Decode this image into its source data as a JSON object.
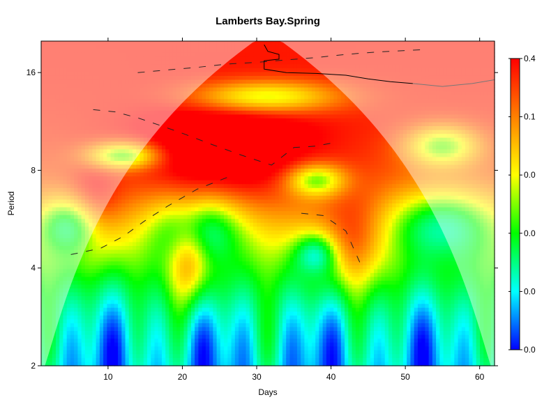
{
  "chart_data": {
    "type": "heatmap",
    "title": "Lamberts Bay.Spring",
    "xlabel": "Days",
    "ylabel": "Period",
    "x_range": [
      1,
      62
    ],
    "y_range": [
      2,
      20
    ],
    "y_scale": "log2",
    "x_ticks": [
      {
        "value": 10,
        "label": "10"
      },
      {
        "value": 20,
        "label": "20"
      },
      {
        "value": 30,
        "label": "30"
      },
      {
        "value": 40,
        "label": "40"
      },
      {
        "value": 50,
        "label": "50"
      },
      {
        "value": 60,
        "label": "60"
      }
    ],
    "y_ticks": [
      {
        "value": 2,
        "label": "2"
      },
      {
        "value": 4,
        "label": "4"
      },
      {
        "value": 8,
        "label": "8"
      },
      {
        "value": 16,
        "label": "16"
      }
    ],
    "colorbar": {
      "colors": [
        "#ff0000",
        "#ff8000",
        "#ffff00",
        "#00ff00",
        "#00ffff",
        "#0000ff"
      ],
      "tick_labels": [
        "0.4",
        "0.1",
        "0.0",
        "0.0",
        "0.0",
        "0.0"
      ]
    },
    "cone_of_influence": true,
    "significance_contour": true,
    "power_ridges": true,
    "grid": false,
    "legend": "right (colorbar)"
  }
}
